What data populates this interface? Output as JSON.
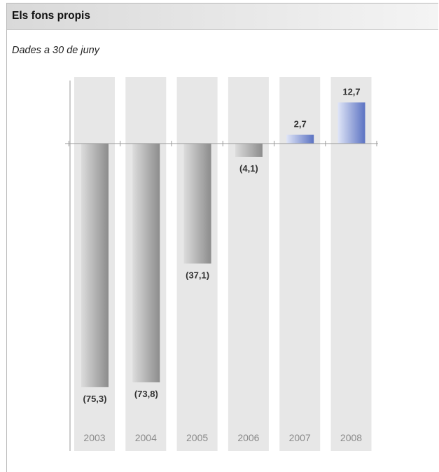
{
  "header": {
    "title": "Els fons propis",
    "subtitle": "Dades a 30 de juny"
  },
  "chart_data": {
    "type": "bar",
    "title": "Els fons propis",
    "subtitle": "Dades a 30 de juny",
    "categories": [
      "2003",
      "2004",
      "2005",
      "2006",
      "2007",
      "2008"
    ],
    "values": [
      -75.3,
      -73.8,
      -37.1,
      -4.1,
      2.7,
      12.7
    ],
    "value_labels": [
      "(75,3)",
      "(73,8)",
      "(37,1)",
      "(4,1)",
      "2,7",
      "12,7"
    ],
    "xlabel": "",
    "ylabel": "",
    "ylim": [
      -80,
      20
    ],
    "grid": false,
    "legend": "none",
    "colors": {
      "negative_dark": "#8c8c8c",
      "negative_light": "#dcdcdc",
      "positive_dark": "#5b72c2",
      "positive_light": "#dfe5f7",
      "column_background": "#e7e7e7",
      "axis": "#9a9a9a"
    }
  }
}
